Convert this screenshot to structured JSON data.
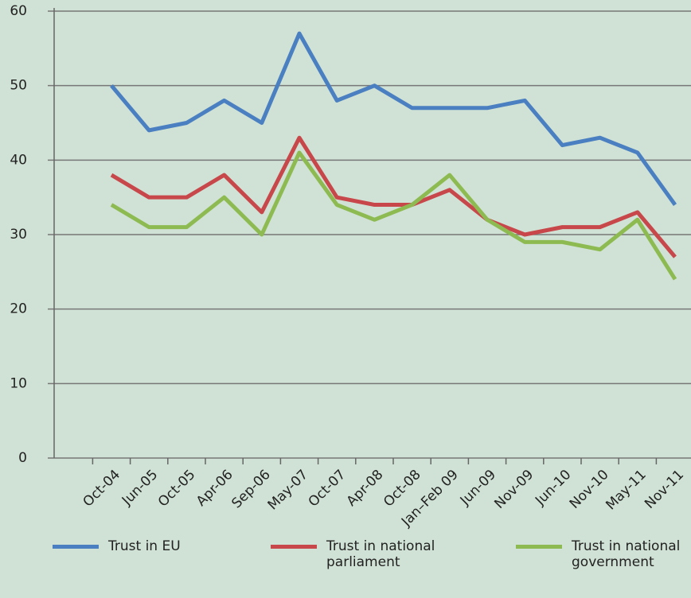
{
  "chart_data": {
    "type": "line",
    "categories": [
      "Oct-04",
      "Jun-05",
      "Oct-05",
      "Apr-06",
      "Sep-06",
      "May-07",
      "Oct-07",
      "Apr-08",
      "Oct-08",
      "Jan–Feb 09",
      "Jun-09",
      "Nov-09",
      "Jun-10",
      "Nov-10",
      "May-11",
      "Nov-11"
    ],
    "series": [
      {
        "name": "Trust in EU",
        "color": "#4a7fc1",
        "values": [
          50,
          44,
          45,
          48,
          45,
          57,
          48,
          50,
          47,
          47,
          47,
          48,
          42,
          43,
          41,
          34
        ]
      },
      {
        "name": "Trust in national parliament",
        "color": "#c8474a",
        "values": [
          38,
          35,
          35,
          38,
          33,
          43,
          35,
          34,
          34,
          36,
          32,
          30,
          31,
          31,
          33,
          27
        ]
      },
      {
        "name": "Trust in national government",
        "color": "#8dbb52",
        "values": [
          34,
          31,
          31,
          35,
          30,
          41,
          34,
          32,
          34,
          38,
          32,
          29,
          29,
          28,
          32,
          24
        ]
      }
    ],
    "ylim": [
      0,
      60
    ],
    "yticks": [
      0,
      10,
      20,
      30,
      40,
      50,
      60
    ],
    "grid": true,
    "legend": "bottom"
  }
}
